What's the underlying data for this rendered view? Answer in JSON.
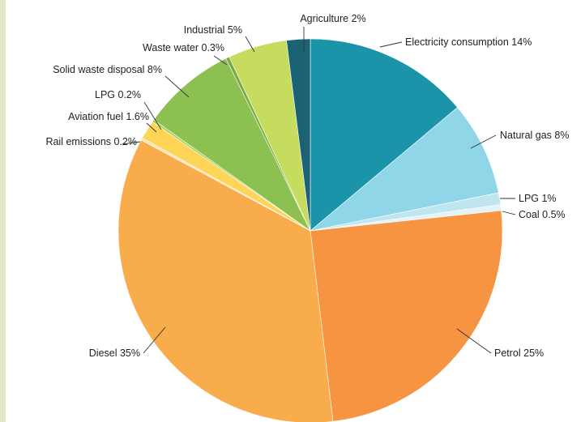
{
  "chart_data": {
    "type": "pie",
    "title": "",
    "start_angle_deg": 0,
    "direction": "clockwise",
    "slices": [
      {
        "label": "Electricity consumption 14%",
        "name": "Electricity consumption",
        "value": 14,
        "color": "#1b93a8"
      },
      {
        "label": "Natural gas 8%",
        "name": "Natural gas",
        "value": 8,
        "color": "#8fd6e8"
      },
      {
        "label": "LPG 1%",
        "name": "LPG",
        "value": 1,
        "color": "#bfe6f0"
      },
      {
        "label": "Coal 0.5%",
        "name": "Coal",
        "value": 0.5,
        "color": "#e4f3f6"
      },
      {
        "label": "Petrol 25%",
        "name": "Petrol",
        "value": 25,
        "color": "#f69442"
      },
      {
        "label": "Diesel 35%",
        "name": "Diesel",
        "value": 35,
        "color": "#f9ac4b"
      },
      {
        "label": "Rail emissions 0.2%",
        "name": "Rail emissions",
        "value": 0.2,
        "color": "#fde3b0"
      },
      {
        "label": "Aviation fuel 1.6%",
        "name": "Aviation fuel",
        "value": 1.6,
        "color": "#fed556"
      },
      {
        "label": "LPG 0.2%",
        "name": "LPG",
        "value": 0.2,
        "color": "#a8cf5a"
      },
      {
        "label": "Solid waste disposal 8%",
        "name": "Solid waste disposal",
        "value": 8,
        "color": "#8cc152"
      },
      {
        "label": "Waste water 0.3%",
        "name": "Waste water",
        "value": 0.3,
        "color": "#7aa845"
      },
      {
        "label": "Industrial 5%",
        "name": "Industrial",
        "value": 5,
        "color": "#c6dc5e"
      },
      {
        "label": "Agriculture 2%",
        "name": "Agriculture",
        "value": 2,
        "color": "#1b6274"
      }
    ]
  }
}
